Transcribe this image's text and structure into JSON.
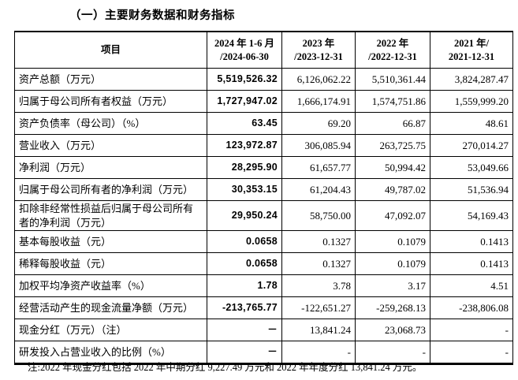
{
  "title": "（一）主要财务数据和财务指标",
  "table": {
    "headers": [
      {
        "line1": "项目",
        "line2": ""
      },
      {
        "line1": "2024 年 1-6 月",
        "line2": "/2024-06-30"
      },
      {
        "line1": "2023 年",
        "line2": "/2023-12-31"
      },
      {
        "line1": "2022 年",
        "line2": "/2022-12-31"
      },
      {
        "line1": "2021 年/",
        "line2": "2021-12-31"
      }
    ],
    "rows": [
      {
        "label": "资产总额（万元）",
        "values": [
          "5,519,526.32",
          "6,126,062.22",
          "5,510,361.44",
          "3,824,287.47"
        ]
      },
      {
        "label": "归属于母公司所有者权益（万元）",
        "values": [
          "1,727,947.02",
          "1,666,174.91",
          "1,574,751.86",
          "1,559,999.20"
        ]
      },
      {
        "label": "资产负债率（母公司）（%）",
        "values": [
          "63.45",
          "69.20",
          "66.87",
          "48.61"
        ]
      },
      {
        "label": "营业收入（万元）",
        "values": [
          "123,972.87",
          "306,085.94",
          "263,725.75",
          "270,014.27"
        ]
      },
      {
        "label": "净利润（万元）",
        "values": [
          "28,295.90",
          "61,657.77",
          "50,994.42",
          "53,049.66"
        ]
      },
      {
        "label": "归属于母公司所有者的净利润（万元）",
        "values": [
          "30,353.15",
          "61,204.43",
          "49,787.02",
          "51,536.94"
        ]
      },
      {
        "label": "扣除非经常性损益后归属于母公司所有者的净利润（万元）",
        "values": [
          "29,950.24",
          "58,750.00",
          "47,092.07",
          "54,169.43"
        ]
      },
      {
        "label": "基本每股收益（元）",
        "values": [
          "0.0658",
          "0.1327",
          "0.1079",
          "0.1413"
        ]
      },
      {
        "label": "稀释每股收益（元）",
        "values": [
          "0.0658",
          "0.1327",
          "0.1079",
          "0.1413"
        ]
      },
      {
        "label": "加权平均净资产收益率（%）",
        "values": [
          "1.78",
          "3.78",
          "3.17",
          "4.51"
        ]
      },
      {
        "label": "经营活动产生的现金流量净额（万元）",
        "values": [
          "-213,765.77",
          "-122,651.27",
          "-259,268.13",
          "-238,806.08"
        ]
      },
      {
        "label": "现金分红（万元）（注）",
        "values": [
          "－",
          "13,841.24",
          "23,068.73",
          "-"
        ]
      },
      {
        "label": "研发投入占营业收入的比例（%）",
        "values": [
          "－",
          "-",
          "-",
          "-"
        ]
      }
    ]
  },
  "note": "注:2022 年现金分红包括 2022 年中期分红 9,227.49 万元和 2022 年年度分红 13,841.24 万元。"
}
